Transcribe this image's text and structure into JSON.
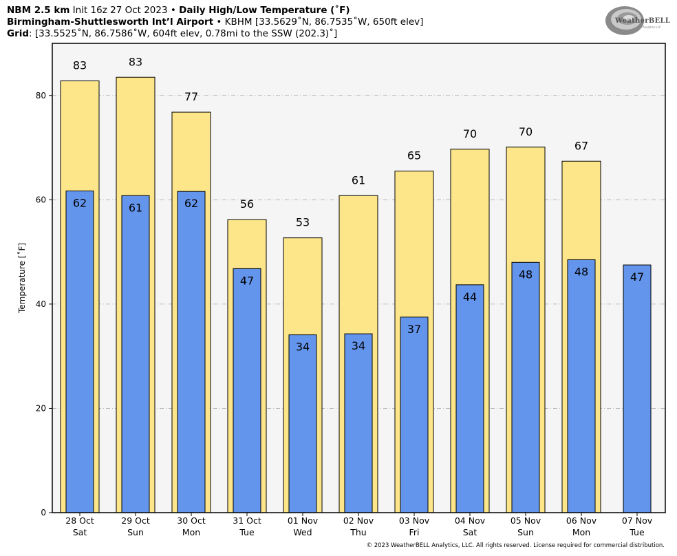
{
  "header": {
    "line1_bold": "NBM 2.5 km",
    "line1_rest": " Init 16z 27 Oct 2023 • ",
    "line1_bold2": "Daily High/Low Temperature (˚F)",
    "line2_bold": "Birmingham-Shuttlesworth Int’l Airport",
    "line2_rest": " • KBHM [33.5629˚N, 86.7535˚W, 650ft elev]",
    "line3_bold": "Grid",
    "line3_rest": ": [33.5525˚N, 86.7586˚W, 604ft elev, 0.78mi to the SSW (202.3)˚]"
  },
  "logo": {
    "text": "WeatherBELL",
    "sub": "Analytics LLC",
    "icon": "swirl-logo-icon"
  },
  "copyright": "© 2023 WeatherBELL Analytics, LLC. All rights reserved. License required for commercial distribution.",
  "colors": {
    "high": "#FDE68A",
    "low": "#6495ED",
    "plot_bg": "#F5F5F5",
    "grid": "#AAAAAA"
  },
  "chart_data": {
    "type": "bar",
    "ylabel": "Temperature [˚F]",
    "ylim": [
      0,
      90
    ],
    "yticks": [
      0,
      20,
      40,
      60,
      80
    ],
    "grid": true,
    "categories": [
      [
        "28 Oct",
        "Sat"
      ],
      [
        "29 Oct",
        "Sun"
      ],
      [
        "30 Oct",
        "Mon"
      ],
      [
        "31 Oct",
        "Tue"
      ],
      [
        "01 Nov",
        "Wed"
      ],
      [
        "02 Nov",
        "Thu"
      ],
      [
        "03 Nov",
        "Fri"
      ],
      [
        "04 Nov",
        "Sat"
      ],
      [
        "05 Nov",
        "Sun"
      ],
      [
        "06 Nov",
        "Mon"
      ],
      [
        "07 Nov",
        "Tue"
      ]
    ],
    "series": [
      {
        "values": [
          82.8,
          83.5,
          76.8,
          56.2,
          52.7,
          60.8,
          65.5,
          69.7,
          70.1,
          67.4,
          null
        ],
        "labels": [
          "83",
          "83",
          "77",
          "56",
          "53",
          "61",
          "65",
          "70",
          "70",
          "67",
          ""
        ]
      },
      {
        "values": [
          61.7,
          60.8,
          61.6,
          46.8,
          34.1,
          34.3,
          37.5,
          43.7,
          48.0,
          48.5,
          47.5
        ],
        "labels": [
          "62",
          "61",
          "62",
          "47",
          "34",
          "34",
          "37",
          "44",
          "48",
          "48",
          "47"
        ]
      }
    ]
  }
}
